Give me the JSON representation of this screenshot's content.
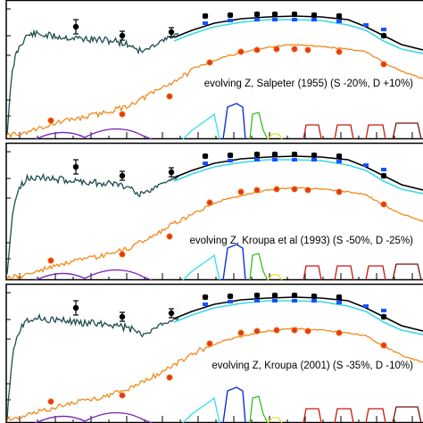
{
  "chart_data": [
    {
      "type": "line",
      "annotation": "evolving Z, Salpeter (1955) (S -20%, D +10%)",
      "x_scale": "log",
      "y_scale": "log",
      "x_range": [
        0.1,
        1000
      ],
      "grid": false
    },
    {
      "type": "line",
      "annotation": "evolving Z, Kroupa et al (1993) (S -50%, D -25%)",
      "x_scale": "log",
      "y_scale": "log",
      "x_range": [
        0.1,
        1000
      ],
      "grid": false
    },
    {
      "type": "line",
      "annotation": "evolving Z, Kroupa (2001) (S -35%, D -10%)",
      "x_scale": "log",
      "y_scale": "log",
      "x_range": [
        0.1,
        1000
      ],
      "grid": false
    }
  ],
  "colors": {
    "total": "#000000",
    "stellar": "#1f4e4e",
    "model_cyan": "#38d8e8",
    "dust": "#f08a1c",
    "model_points": "#e23a1a",
    "obs_points_blue": "#1a50ff",
    "band_purple": "#7a1fb8",
    "band_cyan": "#30e0f0",
    "band_blue": "#1030d8",
    "band_green": "#30c020",
    "band_yellow": "#e0e020",
    "band_red": "#c81a10",
    "band_darkred": "#7a1008"
  }
}
